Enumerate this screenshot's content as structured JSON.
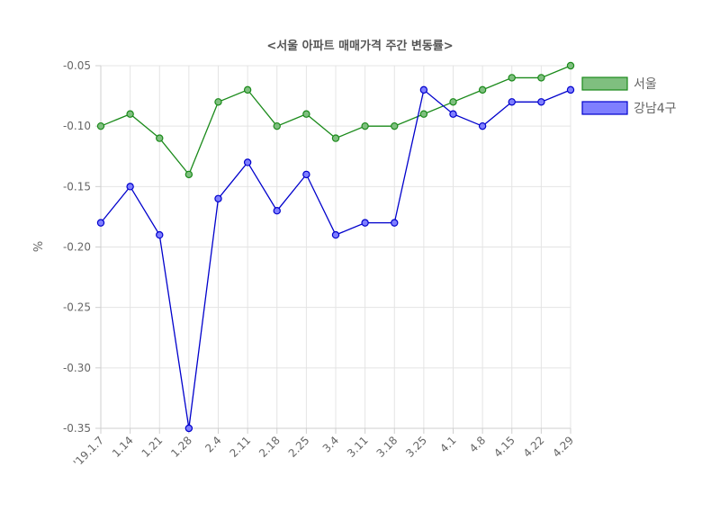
{
  "chart_data": {
    "type": "line",
    "title": "<서울 아파트 매매가격 주간 변동률>",
    "xlabel": "",
    "ylabel": "%",
    "categories": [
      "'19.1.7",
      "1.14",
      "1.21",
      "1.28",
      "2.4",
      "2.11",
      "2.18",
      "2.25",
      "3.4",
      "3.11",
      "3.18",
      "3.25",
      "4.1",
      "4.8",
      "4.15",
      "4.22",
      "4.29"
    ],
    "ylim": [
      -0.35,
      -0.05
    ],
    "yticks": [
      "-0.05",
      "-0.10",
      "-0.15",
      "-0.20",
      "-0.25",
      "-0.30",
      "-0.35"
    ],
    "grid": true,
    "legend_position": "right",
    "series": [
      {
        "name": "서울",
        "color": "#1a8a1a",
        "fill": "#7fbf7f",
        "values": [
          -0.1,
          -0.09,
          -0.11,
          -0.14,
          -0.08,
          -0.07,
          -0.1,
          -0.09,
          -0.11,
          -0.1,
          -0.1,
          -0.09,
          -0.08,
          -0.07,
          -0.06,
          -0.06,
          -0.05
        ]
      },
      {
        "name": "강남4구",
        "color": "#0000cc",
        "fill": "#7f7fff",
        "values": [
          -0.18,
          -0.15,
          -0.19,
          -0.35,
          -0.16,
          -0.13,
          -0.17,
          -0.14,
          -0.19,
          -0.18,
          -0.18,
          -0.07,
          -0.09,
          -0.1,
          -0.08,
          -0.08,
          -0.07
        ]
      }
    ]
  }
}
